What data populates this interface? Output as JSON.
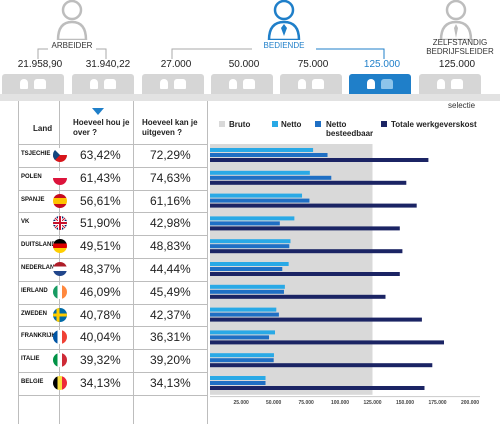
{
  "categories": {
    "arbeider": "ARBEIDER",
    "bediende": "BEDIENDE",
    "zelfstandig": "ZELFSTANDIG BEDRIJFSLEIDER"
  },
  "salary_levels": [
    "21.958,90",
    "31.940,22",
    "27.000",
    "50.000",
    "75.000",
    "125.000",
    "125.000"
  ],
  "selected_index": 5,
  "selectie_label": "selectie",
  "columns": {
    "land": "Land",
    "hou_over": "Hoeveel hou je over ?",
    "uitgeven": "Hoeveel kan je uitgeven ?"
  },
  "colors": {
    "bruto_bg": "#d9d9d9",
    "netto": "#29a9e6",
    "netto_besteedbaar": "#1f6fc4",
    "werkgeverskost": "#1b2464",
    "accent": "#1f7fc9"
  },
  "chart_data": {
    "type": "bar",
    "legend": [
      "Bruto",
      "Netto",
      "Netto besteedbaar",
      "Totale werkgeverskost"
    ],
    "bruto": 125000,
    "xlim": [
      0,
      200000
    ],
    "xticks": [
      "25.000",
      "50.000",
      "75.000",
      "100.000",
      "125.000",
      "150.000",
      "175.000",
      "200.000"
    ],
    "xtick_values": [
      25000,
      50000,
      75000,
      100000,
      125000,
      150000,
      175000,
      200000
    ],
    "rows": [
      {
        "country": "TSJECHIE",
        "flag": "czech-flag",
        "hou_over": "63,42%",
        "uitgeven": "72,29%",
        "netto": 79300,
        "besteedbaar": 90400,
        "werkgeverskost": 168000
      },
      {
        "country": "POLEN",
        "flag": "poland-flag",
        "hou_over": "61,43%",
        "uitgeven": "74,63%",
        "netto": 76800,
        "besteedbaar": 93300,
        "werkgeverskost": 151000
      },
      {
        "country": "SPANJE",
        "flag": "spain-flag",
        "hou_over": "56,61%",
        "uitgeven": "61,16%",
        "netto": 70800,
        "besteedbaar": 76500,
        "werkgeverskost": 159000
      },
      {
        "country": "VK",
        "flag": "uk-flag",
        "hou_over": "51,90%",
        "uitgeven": "42,98%",
        "netto": 64900,
        "besteedbaar": 53700,
        "werkgeverskost": 146000
      },
      {
        "country": "DUITSLAND",
        "flag": "germany-flag",
        "hou_over": "49,51%",
        "uitgeven": "48,83%",
        "netto": 61900,
        "besteedbaar": 61000,
        "werkgeverskost": 148000
      },
      {
        "country": "NEDERLAND",
        "flag": "netherlands-flag",
        "hou_over": "48,37%",
        "uitgeven": "44,44%",
        "netto": 60500,
        "besteedbaar": 55600,
        "werkgeverskost": 146000
      },
      {
        "country": "IERLAND",
        "flag": "ireland-flag",
        "hou_over": "46,09%",
        "uitgeven": "45,49%",
        "netto": 57600,
        "besteedbaar": 56900,
        "werkgeverskost": 135000
      },
      {
        "country": "ZWEDEN",
        "flag": "sweden-flag",
        "hou_over": "40,78%",
        "uitgeven": "42,37%",
        "netto": 51000,
        "besteedbaar": 53000,
        "werkgeverskost": 163000
      },
      {
        "country": "FRANKRIJK",
        "flag": "france-flag",
        "hou_over": "40,04%",
        "uitgeven": "36,31%",
        "netto": 50000,
        "besteedbaar": 45400,
        "werkgeverskost": 180000
      },
      {
        "country": "ITALIE",
        "flag": "italy-flag",
        "hou_over": "39,32%",
        "uitgeven": "39,20%",
        "netto": 49200,
        "besteedbaar": 49000,
        "werkgeverskost": 171000
      },
      {
        "country": "BELGIE",
        "flag": "belgium-flag",
        "hou_over": "34,13%",
        "uitgeven": "34,13%",
        "netto": 42700,
        "besteedbaar": 42700,
        "werkgeverskost": 165000
      }
    ]
  }
}
